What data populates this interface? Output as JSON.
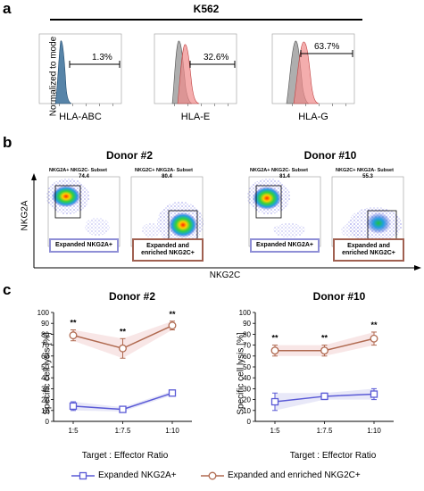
{
  "panels": {
    "a": "a",
    "b": "b",
    "c": "c"
  },
  "panel_a": {
    "cell_line": "K562",
    "ylabel": "Normalized to mode",
    "histograms": [
      {
        "xlabel": "HLA-ABC",
        "percent": "1.3%"
      },
      {
        "xlabel": "HLA-E",
        "percent": "32.6%"
      },
      {
        "xlabel": "HLA-G",
        "percent": "63.7%"
      }
    ]
  },
  "panel_b": {
    "donors": [
      "Donor #2",
      "Donor #10"
    ],
    "ylabel": "NKG2A",
    "xlabel": "NKG2C",
    "plots": [
      {
        "title": "NKG2A+ NKG2C- Subset",
        "value": "74.4",
        "label": "Expanded NKG2A+"
      },
      {
        "title": "NKG2C+ NKG2A- Subset",
        "value": "80.4",
        "label": "Expanded and enriched NKG2C+"
      },
      {
        "title": "NKG2A+ NKG2C- Subset",
        "value": "81.4",
        "label": "Expanded NKG2A+"
      },
      {
        "title": "NKG2C+ NKG2A- Subset",
        "value": "55.3",
        "label": "Expanded and enriched NKG2C+"
      }
    ]
  },
  "colors": {
    "nkg2a": "#5a5ad6",
    "nkg2c": "#b06a50",
    "hist_blue": "#3a6f99",
    "hist_red": "#f08a8a",
    "hist_grey": "#9a9a9a"
  },
  "chart_data": [
    {
      "type": "line",
      "title": "Donor #2",
      "xlabel": "Target : Effector Ratio",
      "ylabel": "Specific cell lysis [%]",
      "categories": [
        "1:5",
        "1:7.5",
        "1:10"
      ],
      "ylim": [
        0,
        100
      ],
      "yticks": [
        0,
        10,
        20,
        30,
        40,
        50,
        60,
        70,
        80,
        90,
        100
      ],
      "significance": [
        "**",
        "**",
        "**"
      ],
      "series": [
        {
          "name": "Expanded NKG2A+",
          "values": [
            14,
            11,
            26
          ],
          "errors": [
            4,
            2,
            2
          ]
        },
        {
          "name": "Expanded and enriched NKG2C+",
          "values": [
            79,
            67,
            88
          ],
          "errors": [
            5,
            9,
            4
          ]
        }
      ]
    },
    {
      "type": "line",
      "title": "Donor #10",
      "xlabel": "Target : Effector Ratio",
      "ylabel": "Specific cell lysis [%]",
      "categories": [
        "1:5",
        "1:7.5",
        "1:10"
      ],
      "ylim": [
        0,
        100
      ],
      "yticks": [
        0,
        10,
        20,
        30,
        40,
        50,
        60,
        70,
        80,
        90,
        100
      ],
      "significance": [
        "**",
        "**",
        "**"
      ],
      "series": [
        {
          "name": "Expanded NKG2A+",
          "values": [
            18,
            23,
            25
          ],
          "errors": [
            8,
            3,
            5
          ]
        },
        {
          "name": "Expanded and enriched NKG2C+",
          "values": [
            65,
            65,
            76
          ],
          "errors": [
            5,
            5,
            6
          ]
        }
      ]
    }
  ],
  "legend": {
    "items": [
      "Expanded NKG2A+",
      "Expanded and enriched NKG2C+"
    ]
  }
}
